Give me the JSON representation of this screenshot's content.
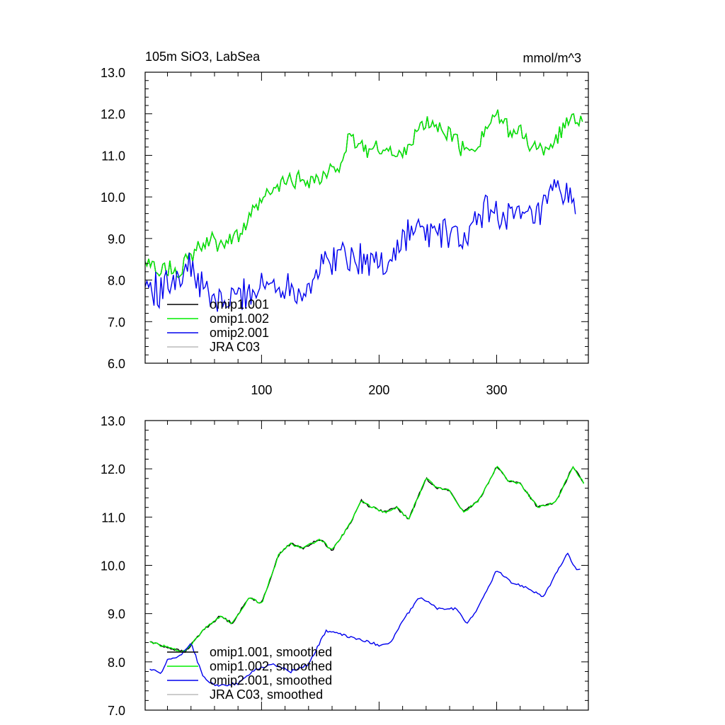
{
  "chart_data": [
    {
      "type": "line",
      "title": "105m SiO3, LabSea",
      "units": "mmol/m^3",
      "xlim": [
        1,
        378
      ],
      "ylim": [
        6.0,
        13.0
      ],
      "yticks": [
        "6.0",
        "7.0",
        "8.0",
        "9.0",
        "10.0",
        "11.0",
        "12.0",
        "13.0"
      ],
      "xticks": [
        "100",
        "200",
        "300"
      ],
      "noise": 0.2,
      "series": [
        {
          "name": "omip1.001",
          "color": "#000000",
          "noise": 0.2,
          "points": [
            [
              1,
              8.35
            ],
            [
              30,
              8.25
            ],
            [
              50,
              8.85
            ],
            [
              80,
              9.05
            ],
            [
              100,
              9.9
            ],
            [
              120,
              10.35
            ],
            [
              140,
              10.45
            ],
            [
              150,
              10.4
            ],
            [
              165,
              10.75
            ],
            [
              175,
              11.4
            ],
            [
              190,
              11.15
            ],
            [
              205,
              11.2
            ],
            [
              215,
              10.9
            ],
            [
              225,
              11.3
            ],
            [
              240,
              11.8
            ],
            [
              260,
              11.55
            ],
            [
              272,
              11.1
            ],
            [
              285,
              11.3
            ],
            [
              298,
              12.0
            ],
            [
              310,
              11.6
            ],
            [
              320,
              11.55
            ],
            [
              335,
              11.1
            ],
            [
              350,
              11.35
            ],
            [
              365,
              12.0
            ],
            [
              374,
              11.7
            ]
          ]
        },
        {
          "name": "omip1.002",
          "color": "#00ee00",
          "noise": 0.2,
          "points": [
            [
              1,
              8.35
            ],
            [
              30,
              8.25
            ],
            [
              50,
              8.85
            ],
            [
              80,
              9.05
            ],
            [
              100,
              9.9
            ],
            [
              120,
              10.35
            ],
            [
              140,
              10.45
            ],
            [
              150,
              10.4
            ],
            [
              165,
              10.75
            ],
            [
              175,
              11.4
            ],
            [
              190,
              11.15
            ],
            [
              205,
              11.2
            ],
            [
              215,
              10.9
            ],
            [
              225,
              11.3
            ],
            [
              240,
              11.8
            ],
            [
              260,
              11.55
            ],
            [
              272,
              11.1
            ],
            [
              285,
              11.3
            ],
            [
              298,
              12.0
            ],
            [
              310,
              11.6
            ],
            [
              320,
              11.55
            ],
            [
              335,
              11.1
            ],
            [
              350,
              11.35
            ],
            [
              365,
              12.0
            ],
            [
              374,
              11.7
            ]
          ]
        },
        {
          "name": "omip2.001",
          "color": "#0000ee",
          "noise": 0.4,
          "points": [
            [
              1,
              7.9
            ],
            [
              15,
              7.7
            ],
            [
              25,
              8.1
            ],
            [
              40,
              8.3
            ],
            [
              55,
              7.55
            ],
            [
              70,
              7.45
            ],
            [
              85,
              7.7
            ],
            [
              100,
              7.85
            ],
            [
              115,
              7.9
            ],
            [
              135,
              7.75
            ],
            [
              155,
              8.45
            ],
            [
              170,
              8.65
            ],
            [
              185,
              8.5
            ],
            [
              205,
              8.4
            ],
            [
              215,
              8.7
            ],
            [
              225,
              9.2
            ],
            [
              245,
              9.15
            ],
            [
              265,
              9.05
            ],
            [
              275,
              8.95
            ],
            [
              290,
              9.7
            ],
            [
              305,
              9.6
            ],
            [
              320,
              9.45
            ],
            [
              335,
              9.5
            ],
            [
              350,
              10.1
            ],
            [
              368,
              9.9
            ]
          ]
        },
        {
          "name": "JRA C03",
          "color": "#bbbbbb",
          "noise": 0,
          "points": []
        }
      ]
    },
    {
      "type": "line",
      "xlim": [
        1,
        378
      ],
      "ylim": [
        7.0,
        13.0
      ],
      "yticks": [
        "7.0",
        "8.0",
        "9.0",
        "10.0",
        "11.0",
        "12.0",
        "13.0"
      ],
      "xticks": [],
      "series": [
        {
          "name": "omip1.001, smoothed",
          "color": "#000000",
          "points": [
            [
              5,
              8.42
            ],
            [
              20,
              8.3
            ],
            [
              35,
              8.2
            ],
            [
              50,
              8.65
            ],
            [
              65,
              8.95
            ],
            [
              75,
              8.8
            ],
            [
              90,
              9.35
            ],
            [
              100,
              9.2
            ],
            [
              115,
              10.25
            ],
            [
              125,
              10.45
            ],
            [
              135,
              10.35
            ],
            [
              150,
              10.55
            ],
            [
              160,
              10.3
            ],
            [
              175,
              10.85
            ],
            [
              185,
              11.35
            ],
            [
              190,
              11.25
            ],
            [
              205,
              11.1
            ],
            [
              215,
              11.2
            ],
            [
              225,
              10.95
            ],
            [
              240,
              11.8
            ],
            [
              250,
              11.6
            ],
            [
              260,
              11.55
            ],
            [
              272,
              11.1
            ],
            [
              285,
              11.35
            ],
            [
              300,
              12.05
            ],
            [
              310,
              11.75
            ],
            [
              320,
              11.7
            ],
            [
              335,
              11.2
            ],
            [
              350,
              11.3
            ],
            [
              365,
              12.05
            ],
            [
              374,
              11.7
            ]
          ]
        },
        {
          "name": "omip1.002, smoothed",
          "color": "#00ee00",
          "points": [
            [
              5,
              8.42
            ],
            [
              20,
              8.3
            ],
            [
              35,
              8.2
            ],
            [
              50,
              8.65
            ],
            [
              65,
              8.95
            ],
            [
              75,
              8.8
            ],
            [
              90,
              9.35
            ],
            [
              100,
              9.2
            ],
            [
              115,
              10.25
            ],
            [
              125,
              10.45
            ],
            [
              135,
              10.35
            ],
            [
              150,
              10.55
            ],
            [
              160,
              10.3
            ],
            [
              175,
              10.85
            ],
            [
              185,
              11.35
            ],
            [
              190,
              11.25
            ],
            [
              205,
              11.1
            ],
            [
              215,
              11.2
            ],
            [
              225,
              10.95
            ],
            [
              240,
              11.8
            ],
            [
              250,
              11.6
            ],
            [
              260,
              11.55
            ],
            [
              272,
              11.1
            ],
            [
              285,
              11.35
            ],
            [
              300,
              12.05
            ],
            [
              310,
              11.75
            ],
            [
              320,
              11.7
            ],
            [
              335,
              11.2
            ],
            [
              350,
              11.3
            ],
            [
              365,
              12.05
            ],
            [
              374,
              11.7
            ]
          ]
        },
        {
          "name": "omip2.001, smoothed",
          "color": "#0000ee",
          "points": [
            [
              5,
              7.85
            ],
            [
              15,
              7.75
            ],
            [
              20,
              8.05
            ],
            [
              30,
              8.1
            ],
            [
              40,
              8.4
            ],
            [
              50,
              7.7
            ],
            [
              60,
              7.5
            ],
            [
              80,
              7.55
            ],
            [
              95,
              7.85
            ],
            [
              110,
              7.95
            ],
            [
              125,
              7.8
            ],
            [
              140,
              7.95
            ],
            [
              155,
              8.65
            ],
            [
              170,
              8.55
            ],
            [
              185,
              8.45
            ],
            [
              200,
              8.35
            ],
            [
              210,
              8.4
            ],
            [
              220,
              8.85
            ],
            [
              235,
              9.35
            ],
            [
              250,
              9.1
            ],
            [
              265,
              9.1
            ],
            [
              275,
              8.8
            ],
            [
              285,
              9.15
            ],
            [
              300,
              9.9
            ],
            [
              312,
              9.65
            ],
            [
              325,
              9.55
            ],
            [
              340,
              9.35
            ],
            [
              350,
              9.8
            ],
            [
              360,
              10.25
            ],
            [
              368,
              9.9
            ],
            [
              372,
              9.95
            ]
          ]
        },
        {
          "name": "JRA C03, smoothed",
          "color": "#bbbbbb",
          "points": []
        }
      ]
    }
  ]
}
